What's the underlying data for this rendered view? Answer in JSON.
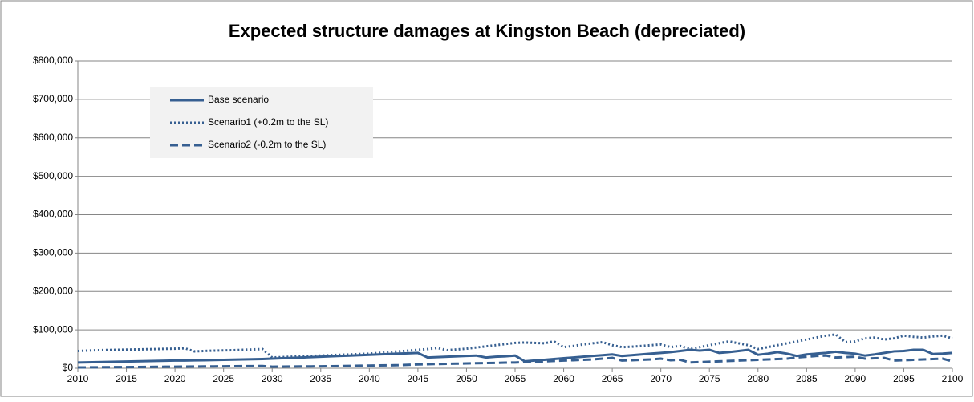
{
  "chart_data": {
    "type": "line",
    "title": "Expected structure damages at Kingston Beach (depreciated)",
    "x": [
      2010,
      2011,
      2012,
      2013,
      2014,
      2015,
      2016,
      2017,
      2018,
      2019,
      2020,
      2021,
      2022,
      2023,
      2024,
      2025,
      2026,
      2027,
      2028,
      2029,
      2030,
      2031,
      2032,
      2033,
      2034,
      2035,
      2036,
      2037,
      2038,
      2039,
      2040,
      2041,
      2042,
      2043,
      2044,
      2045,
      2046,
      2047,
      2048,
      2049,
      2050,
      2051,
      2052,
      2053,
      2054,
      2055,
      2056,
      2057,
      2058,
      2059,
      2060,
      2061,
      2062,
      2063,
      2064,
      2065,
      2066,
      2067,
      2068,
      2069,
      2070,
      2071,
      2072,
      2073,
      2074,
      2075,
      2076,
      2077,
      2078,
      2079,
      2080,
      2081,
      2082,
      2083,
      2084,
      2085,
      2086,
      2087,
      2088,
      2089,
      2090,
      2091,
      2092,
      2093,
      2094,
      2095,
      2096,
      2097,
      2098,
      2099,
      2100
    ],
    "series": [
      {
        "name": "Base scenario",
        "color": "#365f91",
        "line_style": "solid",
        "values": [
          15000,
          15500,
          16000,
          16500,
          17000,
          17500,
          18000,
          18500,
          19000,
          19500,
          20000,
          20000,
          20500,
          21000,
          21500,
          22000,
          22500,
          23000,
          23500,
          24000,
          25000,
          26000,
          27000,
          28000,
          29000,
          30000,
          31000,
          32000,
          33000,
          34000,
          35000,
          36000,
          37000,
          38000,
          39000,
          40000,
          28000,
          29000,
          30000,
          31000,
          32000,
          33000,
          28000,
          30000,
          31000,
          33000,
          18000,
          20000,
          22000,
          24000,
          26000,
          28000,
          30000,
          32000,
          34000,
          36000,
          32000,
          34000,
          36000,
          38000,
          40000,
          42000,
          45000,
          48000,
          46000,
          48000,
          40000,
          42000,
          45000,
          48000,
          35000,
          38000,
          42000,
          38000,
          32000,
          36000,
          38000,
          40000,
          43000,
          40000,
          38000,
          33000,
          36000,
          40000,
          44000,
          45000,
          48000,
          48000,
          37000,
          38000,
          40000
        ]
      },
      {
        "name": "Scenario1 (+0.2m to the SL)",
        "color": "#365f91",
        "line_style": "dotted",
        "values": [
          45000,
          46000,
          47000,
          47500,
          48000,
          48500,
          49000,
          49500,
          50000,
          50500,
          51000,
          52000,
          44000,
          45000,
          46000,
          46500,
          47000,
          48000,
          49000,
          50000,
          28000,
          29000,
          30000,
          31000,
          32000,
          33000,
          34000,
          35000,
          36000,
          37000,
          38000,
          40000,
          42000,
          44000,
          46000,
          48000,
          50000,
          53000,
          47000,
          49000,
          51000,
          54000,
          57000,
          60000,
          63000,
          66000,
          67000,
          66000,
          65000,
          70000,
          55000,
          58000,
          62000,
          65000,
          68000,
          60000,
          55000,
          56000,
          58000,
          60000,
          62000,
          55000,
          58000,
          50000,
          55000,
          60000,
          65000,
          70000,
          65000,
          60000,
          50000,
          55000,
          60000,
          65000,
          70000,
          75000,
          80000,
          85000,
          88000,
          68000,
          70000,
          78000,
          80000,
          75000,
          78000,
          85000,
          82000,
          80000,
          83000,
          85000,
          78000
        ]
      },
      {
        "name": "Scenario2 (-0.2m to the SL)",
        "color": "#365f91",
        "line_style": "dashed",
        "values": [
          2000,
          2200,
          2400,
          2600,
          2800,
          3000,
          3200,
          3400,
          3600,
          3800,
          4000,
          4200,
          4400,
          4600,
          4800,
          5000,
          5200,
          5400,
          5600,
          5800,
          4000,
          4200,
          4400,
          4600,
          4800,
          5000,
          5300,
          5600,
          6000,
          6400,
          6800,
          7200,
          7600,
          8000,
          9000,
          10000,
          10500,
          11000,
          11500,
          12000,
          12500,
          13000,
          13500,
          14000,
          14500,
          15000,
          16000,
          17000,
          18000,
          19000,
          20000,
          21000,
          22000,
          23000,
          25000,
          27000,
          20000,
          21000,
          22000,
          23000,
          25000,
          21000,
          22000,
          15000,
          16000,
          17000,
          18000,
          19000,
          20000,
          21000,
          22000,
          23000,
          24000,
          25000,
          28000,
          30000,
          32000,
          33000,
          28000,
          29000,
          30000,
          25000,
          26000,
          27000,
          20000,
          21000,
          22000,
          23000,
          24000,
          25000,
          18000
        ]
      }
    ],
    "xlim": [
      2010,
      2100
    ],
    "xticks": [
      2010,
      2015,
      2020,
      2025,
      2030,
      2035,
      2040,
      2045,
      2050,
      2055,
      2060,
      2065,
      2070,
      2075,
      2080,
      2085,
      2090,
      2095,
      2100
    ],
    "ylim": [
      0,
      800000
    ],
    "yticks": [
      {
        "value": 0,
        "label": "$0"
      },
      {
        "value": 100000,
        "label": "$100,000"
      },
      {
        "value": 200000,
        "label": "$200,000"
      },
      {
        "value": 300000,
        "label": "$300,000"
      },
      {
        "value": 400000,
        "label": "$400,000"
      },
      {
        "value": 500000,
        "label": "$500,000"
      },
      {
        "value": 600000,
        "label": "$600,000"
      },
      {
        "value": 700000,
        "label": "$700,000"
      },
      {
        "value": 800000,
        "label": "$800,000"
      }
    ],
    "grid": true,
    "legend": "upper left"
  }
}
